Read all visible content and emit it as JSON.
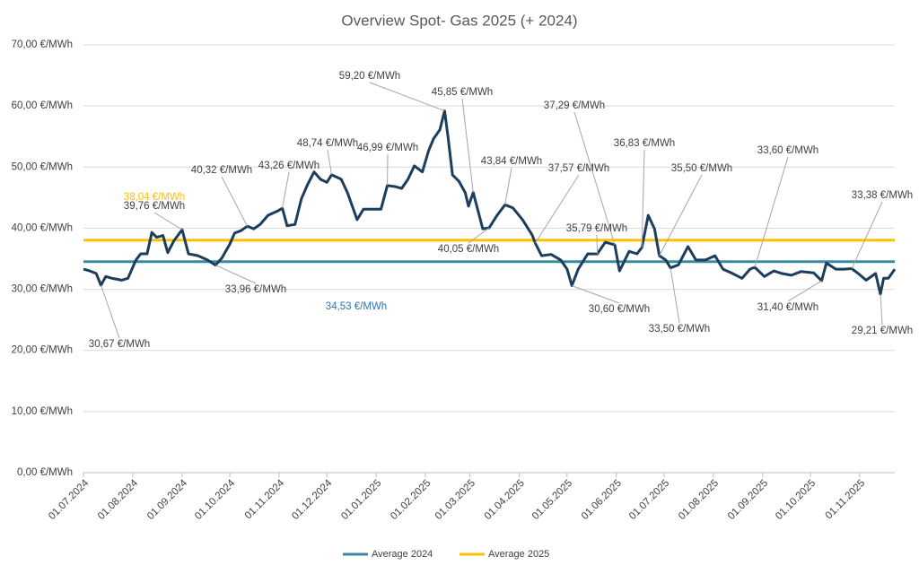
{
  "chart_data": {
    "type": "line",
    "title": "Overview Spot- Gas 2025 (+ 2024)",
    "x": [
      "01.07.2024",
      "05.07.2024",
      "09.07.2024",
      "12.07.2024",
      "15.07.2024",
      "19.07.2024",
      "25.07.2024",
      "29.07.2024",
      "01.08.2024",
      "03.08.2024",
      "06.08.2024",
      "10.08.2024",
      "13.08.2024",
      "16.08.2024",
      "20.08.2024",
      "23.08.2024",
      "27.08.2024",
      "01.09.2024",
      "05.09.2024",
      "11.09.2024",
      "17.09.2024",
      "22.09.2024",
      "26.09.2024",
      "01.10.2024",
      "04.10.2024",
      "08.10.2024",
      "12.10.2024",
      "16.10.2024",
      "20.10.2024",
      "25.10.2024",
      "31.10.2024",
      "03.11.2024",
      "06.11.2024",
      "11.11.2024",
      "15.11.2024",
      "19.11.2024",
      "23.11.2024",
      "27.11.2024",
      "01.12.2024",
      "04.12.2024",
      "10.12.2024",
      "14.12.2024",
      "20.12.2024",
      "24.12.2024",
      "29.12.2024",
      "04.01.2025",
      "08.01.2025",
      "13.01.2025",
      "17.01.2025",
      "21.01.2025",
      "25.01.2025",
      "30.01.2025",
      "03.02.2025",
      "06.02.2025",
      "10.02.2025",
      "13.02.2025",
      "15.02.2025",
      "18.02.2025",
      "22.02.2025",
      "26.02.2025",
      "28.02.2025",
      "03.03.2025",
      "09.03.2025",
      "13.03.2025",
      "18.03.2025",
      "23.03.2025",
      "28.03.2025",
      "03.04.2025",
      "09.04.2025",
      "11.04.2025",
      "15.04.2025",
      "21.04.2025",
      "27.04.2025",
      "01.05.2025",
      "04.05.2025",
      "08.05.2025",
      "14.05.2025",
      "20.05.2025",
      "25.05.2025",
      "31.05.2025",
      "03.06.2025",
      "09.06.2025",
      "14.06.2025",
      "17.06.2025",
      "21.06.2025",
      "25.06.2025",
      "28.06.2025",
      "02.07.2025",
      "05.07.2025",
      "10.07.2025",
      "16.07.2025",
      "21.07.2025",
      "27.07.2025",
      "02.08.2025",
      "07.08.2025",
      "13.08.2025",
      "19.08.2025",
      "24.08.2025",
      "27.08.2025",
      "02.09.2025",
      "08.09.2025",
      "13.09.2025",
      "19.09.2025",
      "25.09.2025",
      "03.10.2025",
      "08.10.2025",
      "11.10.2025",
      "17.10.2025",
      "22.10.2025",
      "27.10.2025",
      "31.10.2025",
      "05.11.2025",
      "11.11.2025",
      "14.11.2025",
      "16.11.2025",
      "19.11.2025",
      "23.11.2025"
    ],
    "series": [
      {
        "color": "#1d3d5c",
        "values": [
          33.3,
          33.0,
          32.6,
          30.67,
          32.1,
          31.8,
          31.5,
          31.8,
          33.6,
          34.8,
          35.8,
          35.8,
          39.3,
          38.5,
          38.8,
          36.0,
          38.0,
          39.76,
          35.8,
          35.5,
          34.8,
          33.96,
          35.1,
          37.4,
          39.2,
          39.6,
          40.32,
          39.9,
          40.6,
          42.1,
          42.8,
          43.26,
          40.4,
          40.6,
          44.8,
          47.2,
          49.2,
          48.0,
          47.5,
          48.74,
          48.0,
          45.8,
          41.4,
          43.1,
          43.1,
          43.1,
          46.99,
          46.8,
          46.5,
          48.0,
          50.2,
          49.2,
          52.7,
          54.6,
          56.1,
          59.2,
          55.3,
          48.7,
          47.7,
          45.8,
          43.6,
          45.85,
          39.9,
          40.05,
          42.1,
          43.84,
          43.3,
          41.4,
          38.9,
          37.57,
          35.5,
          35.7,
          34.8,
          33.3,
          30.6,
          33.3,
          35.8,
          35.79,
          37.7,
          37.29,
          33.0,
          36.2,
          35.8,
          36.83,
          42.1,
          39.9,
          35.5,
          34.8,
          33.5,
          34.0,
          37.0,
          34.8,
          34.8,
          35.5,
          33.3,
          32.6,
          31.8,
          33.3,
          33.6,
          32.1,
          33.0,
          32.6,
          32.3,
          32.9,
          32.7,
          31.4,
          34.3,
          33.3,
          33.3,
          33.38,
          32.6,
          31.5,
          32.6,
          29.21,
          31.8,
          31.8,
          33.3
        ]
      }
    ],
    "reference_lines": [
      {
        "name": "Average 2024",
        "value": 34.53,
        "label": "34,53 €/MWh",
        "color": "#3b8ba3",
        "label_color": "#2e75b6"
      },
      {
        "name": "Average 2025",
        "value": 38.04,
        "label": "38,04 €/MWh",
        "color": "#ffc000",
        "label_color": "#ffc000"
      }
    ],
    "annotations": [
      {
        "x": "12.07.2024",
        "value": 30.67,
        "label": "30,67 €/MWh"
      },
      {
        "x": "01.09.2024",
        "value": 39.76,
        "label": "39,76 €/MWh"
      },
      {
        "x": "22.09.2024",
        "value": 33.96,
        "label": "33,96 €/MWh"
      },
      {
        "x": "12.10.2024",
        "value": 40.32,
        "label": "40,32 €/MWh"
      },
      {
        "x": "03.11.2024",
        "value": 43.26,
        "label": "43,26 €/MWh"
      },
      {
        "x": "04.12.2024",
        "value": 48.74,
        "label": "48,74 €/MWh"
      },
      {
        "x": "08.01.2025",
        "value": 46.99,
        "label": "46,99 €/MWh"
      },
      {
        "x": "13.02.2025",
        "value": 59.2,
        "label": "59,20 €/MWh"
      },
      {
        "x": "03.03.2025",
        "value": 45.85,
        "label": "45,85 €/MWh"
      },
      {
        "x": "13.03.2025",
        "value": 40.05,
        "label": "40,05 €/MWh"
      },
      {
        "x": "23.03.2025",
        "value": 43.84,
        "label": "43,84 €/MWh"
      },
      {
        "x": "11.04.2025",
        "value": 37.57,
        "label": "37,57 €/MWh"
      },
      {
        "x": "31.05.2025",
        "value": 37.29,
        "label": "37,29 €/MWh"
      },
      {
        "x": "20.05.2025",
        "value": 35.79,
        "label": "35,79 €/MWh"
      },
      {
        "x": "04.05.2025",
        "value": 30.6,
        "label": "30,60 €/MWh"
      },
      {
        "x": "17.06.2025",
        "value": 36.83,
        "label": "36,83 €/MWh"
      },
      {
        "x": "28.06.2025",
        "value": 35.5,
        "label": "35,50 €/MWh"
      },
      {
        "x": "05.07.2025",
        "value": 33.5,
        "label": "33,50 €/MWh"
      },
      {
        "x": "27.08.2025",
        "value": 33.6,
        "label": "33,60 €/MWh"
      },
      {
        "x": "08.10.2025",
        "value": 31.4,
        "label": "31,40 €/MWh"
      },
      {
        "x": "27.10.2025",
        "value": 33.38,
        "label": "33,38 €/MWh"
      },
      {
        "x": "14.11.2025",
        "value": 29.21,
        "label": "29,21 €/MWh"
      }
    ],
    "xlim": [
      "01.07.2024",
      "23.11.2025"
    ],
    "xticks": [
      "01.07.2024",
      "01.08.2024",
      "01.09.2024",
      "01.10.2024",
      "01.11.2024",
      "01.12.2024",
      "01.01.2025",
      "01.02.2025",
      "01.03.2025",
      "01.04.2025",
      "01.05.2025",
      "01.06.2025",
      "01.07.2025",
      "01.08.2025",
      "01.09.2025",
      "01.10.2025",
      "01.11.2025"
    ],
    "ylim": [
      0,
      70
    ],
    "yticks": [
      {
        "value": 0,
        "label": "0,00 €/MWh"
      },
      {
        "value": 10,
        "label": "10,00 €/MWh"
      },
      {
        "value": 20,
        "label": "20,00 €/MWh"
      },
      {
        "value": 30,
        "label": "30,00 €/MWh"
      },
      {
        "value": 40,
        "label": "40,00 €/MWh"
      },
      {
        "value": 50,
        "label": "50,00 €/MWh"
      },
      {
        "value": 60,
        "label": "60,00 €/MWh"
      },
      {
        "value": 70,
        "label": "70,00 €/MWh"
      }
    ],
    "grid": true,
    "legend": "bottom"
  }
}
